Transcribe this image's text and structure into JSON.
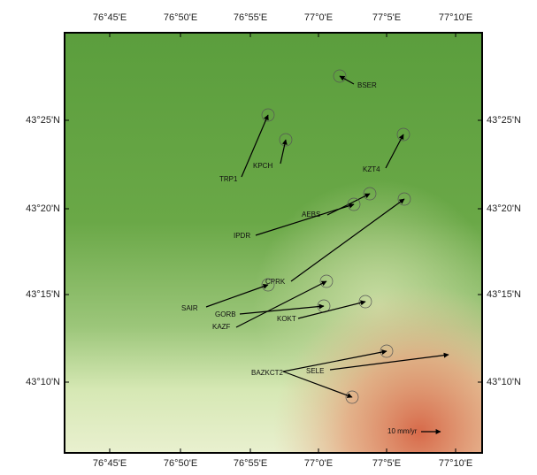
{
  "map": {
    "x_labels": [
      "76°45'E",
      "76°50'E",
      "76°55'E",
      "77°0'E",
      "77°5'E",
      "77°10'E"
    ],
    "y_labels": [
      "43°25'N",
      "43°20'N",
      "43°15'N",
      "43°10'N"
    ],
    "stations": [
      {
        "label": "BSER"
      },
      {
        "label": "TRP1"
      },
      {
        "label": "KPCH"
      },
      {
        "label": "KZT4"
      },
      {
        "label": "AEBS"
      },
      {
        "label": "IPDR"
      },
      {
        "label": "CPRK"
      },
      {
        "label": "SAIR"
      },
      {
        "label": "GORB"
      },
      {
        "label": "KOKT"
      },
      {
        "label": "KAZF"
      },
      {
        "label": "BAZKCT2"
      },
      {
        "label": "SELE"
      }
    ],
    "scale_label": "10 mm/yr"
  }
}
